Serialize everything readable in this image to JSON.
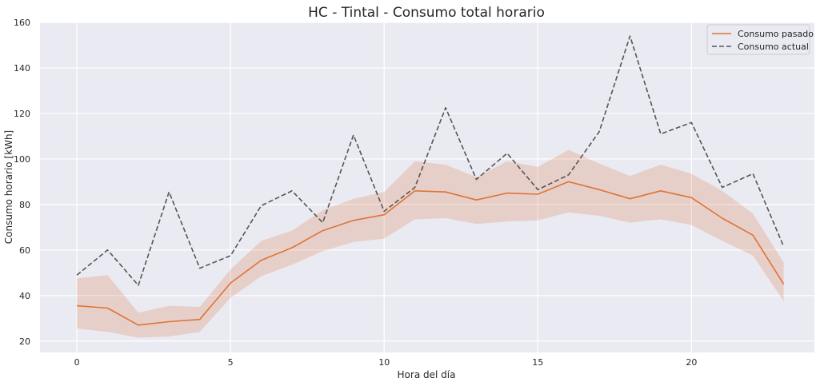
{
  "chart_data": {
    "type": "line",
    "title": "HC - Tintal - Consumo total horario",
    "xlabel": "Hora del día",
    "ylabel": "Consumo horario [kWh]",
    "xlim": [
      -1.2,
      24.0
    ],
    "ylim": [
      15,
      160
    ],
    "xticks": [
      0,
      5,
      10,
      15,
      20
    ],
    "yticks": [
      20,
      40,
      60,
      80,
      100,
      120,
      140,
      160
    ],
    "grid": true,
    "legend_position": "top-right",
    "x": [
      0,
      1,
      2,
      3,
      4,
      5,
      6,
      7,
      8,
      9,
      10,
      11,
      12,
      13,
      14,
      15,
      16,
      17,
      18,
      19,
      20,
      21,
      22,
      23
    ],
    "series": [
      {
        "name": "Consumo pasado",
        "style": "solid",
        "color": "#dd7436",
        "values": [
          35.5,
          34.5,
          27,
          28.5,
          29.5,
          45.5,
          55.5,
          61,
          68.5,
          73,
          75.5,
          86,
          85.5,
          82,
          85,
          84.5,
          90,
          86.5,
          82.5,
          86,
          83,
          74,
          66.5,
          45
        ],
        "band_lower": [
          25.5,
          24,
          21.5,
          22,
          24,
          39,
          48.5,
          53.5,
          59.5,
          63.5,
          65,
          73.5,
          74,
          71.5,
          72.5,
          73,
          76.5,
          75,
          72,
          73.5,
          71,
          64,
          57.5,
          37.5
        ],
        "band_upper": [
          47.5,
          49,
          32.5,
          35.5,
          35,
          51.5,
          64,
          68.5,
          77.5,
          82.5,
          85.5,
          99,
          97.5,
          92,
          99,
          96.5,
          104,
          98,
          92.5,
          97.5,
          93.5,
          86,
          76,
          54.5
        ]
      },
      {
        "name": "Consumo actual",
        "style": "dashed",
        "color": "#555555",
        "values": [
          49,
          60,
          44.5,
          85.5,
          52,
          57.5,
          79.5,
          86,
          72,
          110.5,
          77,
          87.5,
          122.5,
          91,
          102.5,
          86.5,
          93,
          112,
          154,
          111,
          116,
          87.5,
          93.5,
          61.5
        ]
      }
    ]
  }
}
